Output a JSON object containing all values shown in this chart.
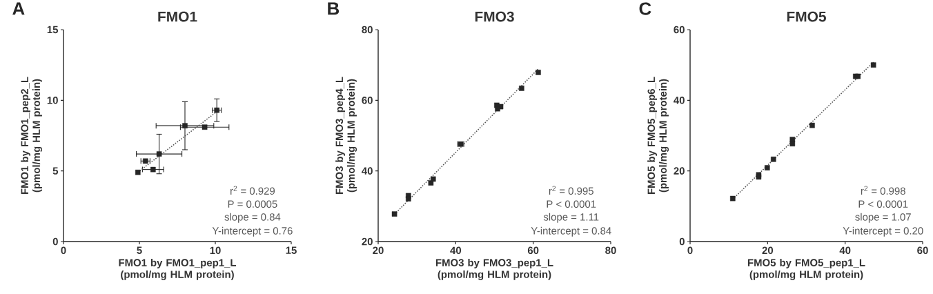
{
  "chart_data": [
    {
      "type": "scatter",
      "title": "FMO1",
      "xlabel": "FMO1 by FMO1_pep1_L (pmol/mg HLM protein)",
      "ylabel": "FMO1 by FMO1_pep2_L (pmol/mg HLM protein)",
      "xlim": [
        0,
        15
      ],
      "ylim": [
        0,
        15
      ],
      "xticks": [
        0,
        5,
        10,
        15
      ],
      "yticks": [
        0,
        5,
        10,
        15
      ],
      "marker": "square",
      "annotations": [
        "A",
        "r$^{2}$ = 0.929",
        "P = 0.0005",
        "slope = 0.84",
        "Y-intercept = 0.76"
      ],
      "series": [
        {
          "color": "#262626",
          "x": [
            4.9,
            5.4,
            5.9,
            6.3,
            8.0,
            9.3,
            10.1
          ],
          "values": [
            4.9,
            5.7,
            5.1,
            6.2,
            8.2,
            8.1,
            9.3
          ],
          "xerrors": [
            null,
            0.3,
            0.7,
            1.5,
            1.9,
            1.6,
            0.3
          ],
          "errors": [
            null,
            null,
            null,
            1.4,
            1.7,
            null,
            0.8
          ]
        },
        {
          "type": "line",
          "color": "#555555",
          "marker": "none",
          "line_style": "dotted",
          "x": [
            4.9,
            10.1
          ],
          "values": [
            4.9,
            9.2
          ]
        }
      ]
    },
    {
      "type": "scatter",
      "title": "FMO3",
      "xlabel": "FMO3 by FMO3_pep1_L (pmol/mg HLM protein)",
      "ylabel": "FMO3 by FMO3_pep4_L (pmol/mg HLM protein)",
      "xlim": [
        20,
        80
      ],
      "ylim": [
        20,
        80
      ],
      "xticks": [
        20,
        40,
        60,
        80
      ],
      "yticks": [
        20,
        40,
        60,
        80
      ],
      "marker": "square",
      "annotations": [
        "B",
        "r$^{2}$ = 0.995",
        "P < 0.0001",
        "slope = 1.11",
        "Y-intercept = 0.84"
      ],
      "series": [
        {
          "color": "#262626",
          "x": [
            24.2,
            27.8,
            27.8,
            33.6,
            34.2,
            41.3,
            50.6,
            51.6,
            50.8,
            57.0,
            61.3
          ],
          "values": [
            27.8,
            33.0,
            32.1,
            36.6,
            37.7,
            47.6,
            58.6,
            58.2,
            57.6,
            63.4,
            67.9
          ],
          "xerrors": [
            null,
            null,
            null,
            null,
            null,
            0.8,
            null,
            null,
            null,
            null,
            null
          ]
        },
        {
          "type": "line",
          "color": "#555555",
          "marker": "none",
          "line_style": "dotted",
          "x": [
            24.2,
            61.3
          ],
          "values": [
            27.7,
            68.9
          ]
        }
      ]
    },
    {
      "type": "scatter",
      "title": "FMO5",
      "xlabel": "FMO5 by FMO5_pep1_L (pmol/mg HLM protein)",
      "ylabel": "FMO5 by FMO5_pep6_L (pmol/mg HLM protein)",
      "xlim": [
        0,
        60
      ],
      "ylim": [
        0,
        60
      ],
      "xticks": [
        0,
        20,
        40,
        60
      ],
      "yticks": [
        0,
        20,
        40,
        60
      ],
      "marker": "square",
      "annotations": [
        "C",
        "r$^{2}$ = 0.998",
        "P < 0.0001",
        "slope = 1.07",
        "Y-intercept = 0.20"
      ],
      "series": [
        {
          "color": "#262626",
          "x": [
            11.0,
            17.7,
            17.7,
            19.9,
            21.5,
            26.4,
            26.4,
            31.5,
            42.7,
            43.3,
            47.3
          ],
          "values": [
            12.2,
            18.9,
            18.3,
            20.9,
            23.3,
            28.9,
            27.7,
            32.9,
            46.8,
            46.8,
            50.0
          ]
        },
        {
          "type": "line",
          "color": "#555555",
          "marker": "none",
          "line_style": "dotted",
          "x": [
            11.0,
            47.3
          ],
          "values": [
            12.0,
            50.8
          ]
        }
      ]
    }
  ]
}
